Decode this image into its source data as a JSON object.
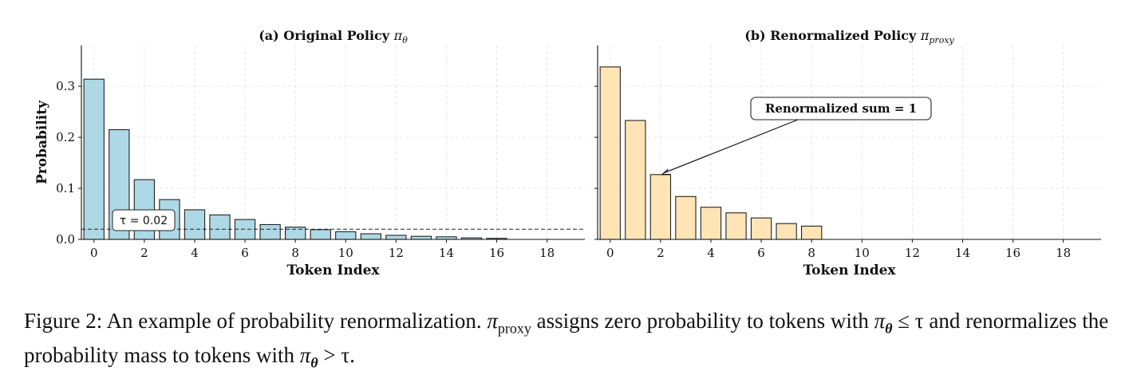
{
  "figure": {
    "caption": {
      "prefix": "Figure 2: An example of probability renormalization. ",
      "pi": "π",
      "proxy_sub": "proxy",
      "mid1": " assigns zero probability to tokens with ",
      "theta": "θ",
      "le_tau": " ≤ τ",
      "mid2": " and renormalizes the probability mass to tokens with ",
      "gt_tau": " > τ."
    }
  },
  "chart_data": [
    {
      "type": "bar",
      "title_text": "(a) Original Policy ",
      "title_symbol": "π",
      "title_sub": "θ",
      "xlabel": "Token Index",
      "ylabel": "Probability",
      "x": [
        0,
        1,
        2,
        3,
        4,
        5,
        6,
        7,
        8,
        9,
        10,
        11,
        12,
        13,
        14,
        15,
        16,
        17,
        18,
        19
      ],
      "values": [
        0.314,
        0.215,
        0.117,
        0.078,
        0.058,
        0.048,
        0.039,
        0.029,
        0.024,
        0.019,
        0.015,
        0.011,
        0.008,
        0.006,
        0.005,
        0.003,
        0.002,
        0,
        0,
        0
      ],
      "xticks": [
        0,
        2,
        4,
        6,
        8,
        10,
        12,
        14,
        16,
        18
      ],
      "yticks": [
        0.0,
        0.1,
        0.2,
        0.3
      ],
      "ytick_labels": [
        "0.0",
        "0.1",
        "0.2",
        "0.3"
      ],
      "ylim": [
        0,
        0.38
      ],
      "xlim": [
        -0.5,
        19.5
      ],
      "grid": true,
      "bar_color": "#add8e6",
      "threshold": {
        "value": 0.02,
        "label": "τ = 0.02"
      }
    },
    {
      "type": "bar",
      "title_text": "(b) Renormalized Policy ",
      "title_symbol": "π",
      "title_sub": "proxy",
      "xlabel": "Token Index",
      "ylabel": "",
      "x": [
        0,
        1,
        2,
        3,
        4,
        5,
        6,
        7,
        8,
        9,
        10,
        11,
        12,
        13,
        14,
        15,
        16,
        17,
        18,
        19
      ],
      "values": [
        0.338,
        0.233,
        0.127,
        0.084,
        0.063,
        0.052,
        0.042,
        0.031,
        0.026,
        0,
        0,
        0,
        0,
        0,
        0,
        0,
        0,
        0,
        0,
        0
      ],
      "xticks": [
        0,
        2,
        4,
        6,
        8,
        10,
        12,
        14,
        16,
        18
      ],
      "yticks": [
        0.0,
        0.1,
        0.2,
        0.3
      ],
      "ytick_labels": [],
      "ylim": [
        0,
        0.38
      ],
      "xlim": [
        -0.5,
        19.5
      ],
      "grid": true,
      "bar_color": "#ffe4b5",
      "annotation": {
        "text": "Renormalized sum = 1",
        "point_x": 2,
        "point_y": 0.127
      }
    }
  ]
}
